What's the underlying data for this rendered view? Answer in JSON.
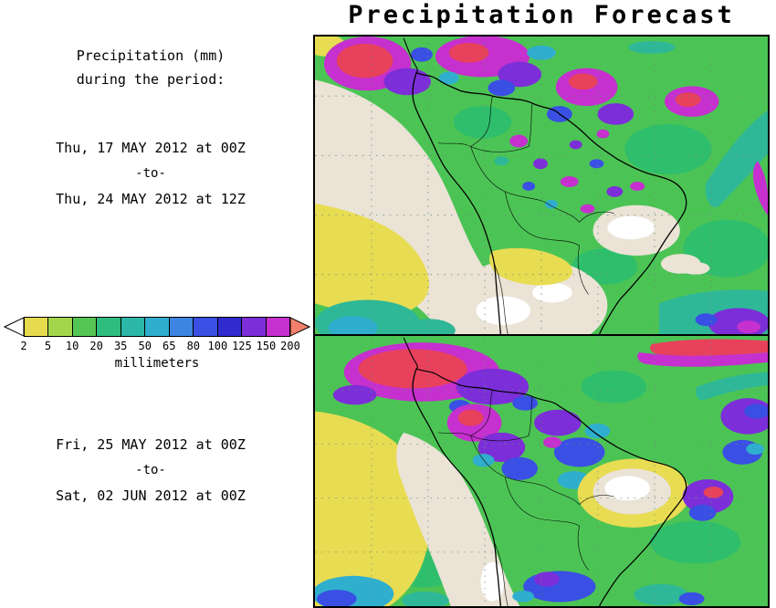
{
  "title": "Precipitation Forecast",
  "sidebar": {
    "heading_line1": "Precipitation (mm)",
    "heading_line2": "during the period:",
    "period1": {
      "from": "Thu, 17 MAY 2012 at 00Z",
      "separator": "-to-",
      "to": "Thu, 24 MAY 2012 at 12Z"
    },
    "period2": {
      "from": "Fri, 25 MAY 2012 at 00Z",
      "separator": "-to-",
      "to": "Sat, 02 JUN 2012 at 00Z"
    }
  },
  "colorbar": {
    "unit_label": "millimeters",
    "tick_labels": [
      "2",
      "5",
      "10",
      "20",
      "35",
      "50",
      "65",
      "80",
      "100",
      "125",
      "150",
      "200"
    ],
    "segment_colors": [
      "#E6DB4E",
      "#A3D64B",
      "#55C653",
      "#2EBD7E",
      "#2BB8A8",
      "#2FAECE",
      "#3D85E0",
      "#3A4FE3",
      "#2F2BCF",
      "#7C2ED8",
      "#C530CE"
    ],
    "under_range_arrow_color": "#FFFFFF",
    "over_range_arrow_color": "#F2806B"
  },
  "map_palette": {
    "dry_land": "#EAE3D6",
    "very_dry_white": "#FFFFFF",
    "light_rain_yellow": "#E8DC52",
    "moderate_rain_green": "#4CC455",
    "heavier_green": "#2FBE6B",
    "teal": "#2EB897",
    "cyan": "#2FAECE",
    "blue": "#3A4FE3",
    "purple": "#7C2ED8",
    "magenta": "#C530CE",
    "extreme_red": "#E8415C",
    "coastline": "#000000"
  }
}
